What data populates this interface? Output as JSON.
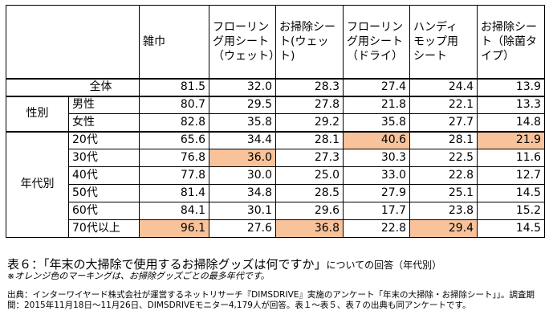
{
  "table": {
    "columns": [
      "雑巾",
      "フローリング用シート（ウェット）",
      "お掃除シート(ウェット)",
      "フローリング用シート（ドライ）",
      "ハンディモップ用シート",
      "お掃除シート（除菌タイプ）"
    ],
    "header_lines": [
      [
        "雑巾"
      ],
      [
        "フローリン",
        "グ用シート",
        "（ウェット）"
      ],
      [
        "お掃除シー",
        "ト(ウェット)"
      ],
      [
        "フローリン",
        "グ用シート",
        "（ドライ）"
      ],
      [
        "ハンディ",
        "モップ用",
        "シート"
      ],
      [
        "お掃除シー",
        "ト（除菌タ",
        "イプ）"
      ]
    ],
    "rows": [
      {
        "group": "",
        "label": "全体",
        "values": [
          "81.5",
          "32.0",
          "28.3",
          "27.4",
          "24.4",
          "13.9"
        ],
        "highlight": []
      },
      {
        "group": "性別",
        "label": "男性",
        "values": [
          "80.7",
          "29.5",
          "27.8",
          "21.8",
          "22.1",
          "13.3"
        ],
        "highlight": []
      },
      {
        "group": "性別",
        "label": "女性",
        "values": [
          "82.8",
          "35.8",
          "29.2",
          "35.8",
          "27.7",
          "14.8"
        ],
        "highlight": []
      },
      {
        "group": "年代別",
        "label": "20代",
        "values": [
          "65.6",
          "34.4",
          "28.1",
          "40.6",
          "28.1",
          "21.9"
        ],
        "highlight": [
          3,
          5
        ]
      },
      {
        "group": "年代別",
        "label": "30代",
        "values": [
          "76.8",
          "36.0",
          "27.3",
          "30.3",
          "22.5",
          "11.6"
        ],
        "highlight": [
          1
        ]
      },
      {
        "group": "年代別",
        "label": "40代",
        "values": [
          "77.8",
          "30.0",
          "25.0",
          "33.0",
          "22.8",
          "12.7"
        ],
        "highlight": []
      },
      {
        "group": "年代別",
        "label": "50代",
        "values": [
          "81.4",
          "34.8",
          "28.5",
          "27.9",
          "25.1",
          "14.5"
        ],
        "highlight": []
      },
      {
        "group": "年代別",
        "label": "60代",
        "values": [
          "84.1",
          "30.1",
          "29.6",
          "17.7",
          "23.8",
          "15.2"
        ],
        "highlight": []
      },
      {
        "group": "年代別",
        "label": "70代以上",
        "values": [
          "96.1",
          "27.6",
          "36.8",
          "22.8",
          "29.4",
          "14.5"
        ],
        "highlight": [
          0,
          2,
          4
        ]
      }
    ],
    "groups": {
      "gender": "性別",
      "age": "年代別"
    },
    "highlight_color": "#f8c29a"
  },
  "caption": {
    "main": "表６：「年末の大掃除で使用するお掃除グッズは何ですか」",
    "suffix": "についての回答（年代別）"
  },
  "note": "※オレンジ色のマーキングは、お掃除グッズごとの最多年代です。",
  "source": "出典：インターワイヤード株式会社が運営するネットリサーチ『DIMSDRIVE』実施のアンケート「年末の大掃除・お掃除シート」」。調査期間：2015年11月18日～11月26日、DIMSDRIVEモニター4,179人が回答。表１～表５、表７の出典も同アンケートです。"
}
